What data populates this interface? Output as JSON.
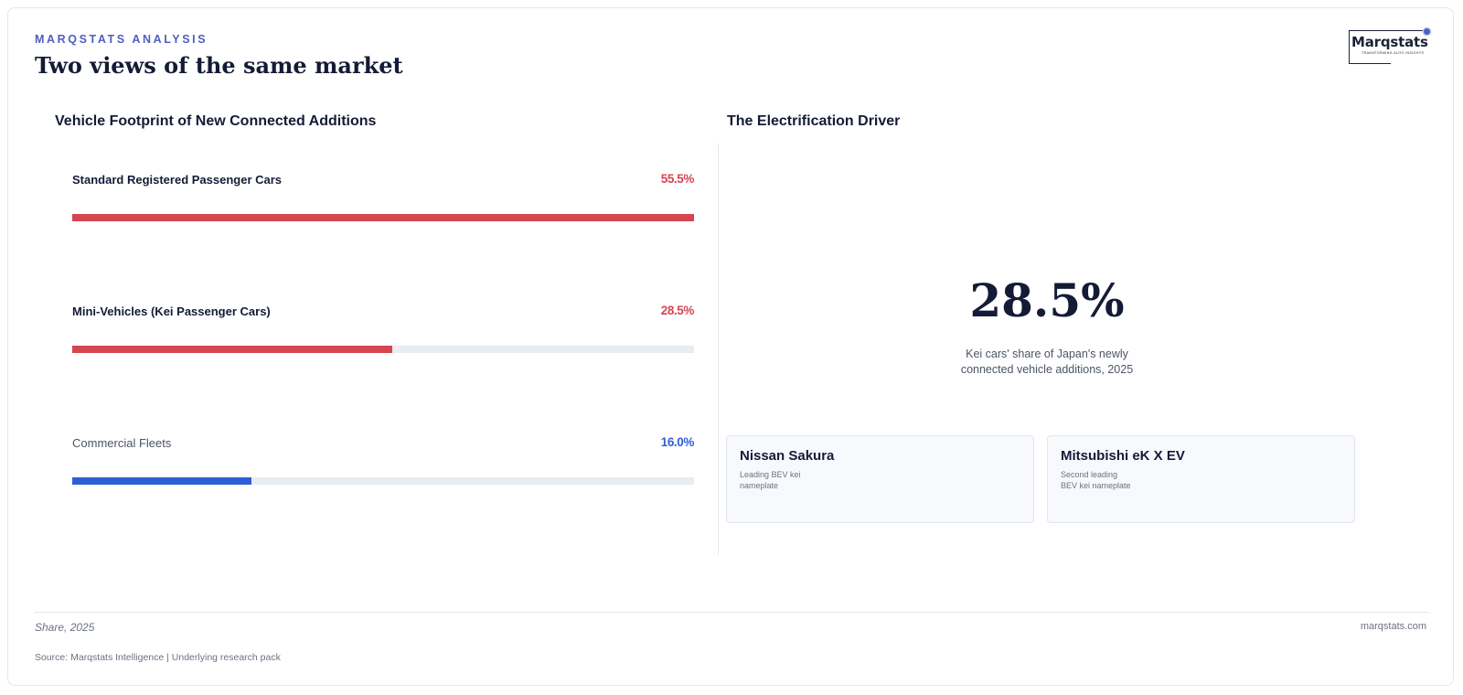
{
  "header": {
    "eyebrow": "MARQSTATS ANALYSIS",
    "title": "Two views of the same market"
  },
  "logo": {
    "wordmark": "Marqstats",
    "tagline": "TRANSFORMING AUTO INSIGHTS"
  },
  "left_panel": {
    "title": "Vehicle Footprint of New Connected Additions",
    "bars": [
      {
        "label": "Standard Registered Passenger Cars",
        "value_text": "55.5%",
        "value": 55.5,
        "fill_fraction": 1.0,
        "color": "#d64550"
      },
      {
        "label": "Mini-Vehicles (Kei Passenger Cars)",
        "value_text": "28.5%",
        "value": 28.5,
        "fill_fraction": 0.514,
        "color": "#d64550"
      },
      {
        "label": "Commercial Fleets",
        "value_text": "16.0%",
        "value": 16.0,
        "fill_fraction": 0.288,
        "color": "#2f5fd7"
      }
    ]
  },
  "right_panel": {
    "title": "The Electrification Driver",
    "kpi_value": "28.5%",
    "kpi_caption": "Kei cars' share of Japan's newly connected vehicle additions, 2025",
    "cards": [
      {
        "name": "Nissan Sakura",
        "description": "Leading BEV kei nameplate"
      },
      {
        "name": "Mitsubishi eK X EV",
        "description": "Second leading BEV kei nameplate"
      }
    ]
  },
  "footer": {
    "note": "Share, 2025",
    "site": "marqstats.com",
    "source": "Source: Marqstats Intelligence | Underlying research pack"
  }
}
